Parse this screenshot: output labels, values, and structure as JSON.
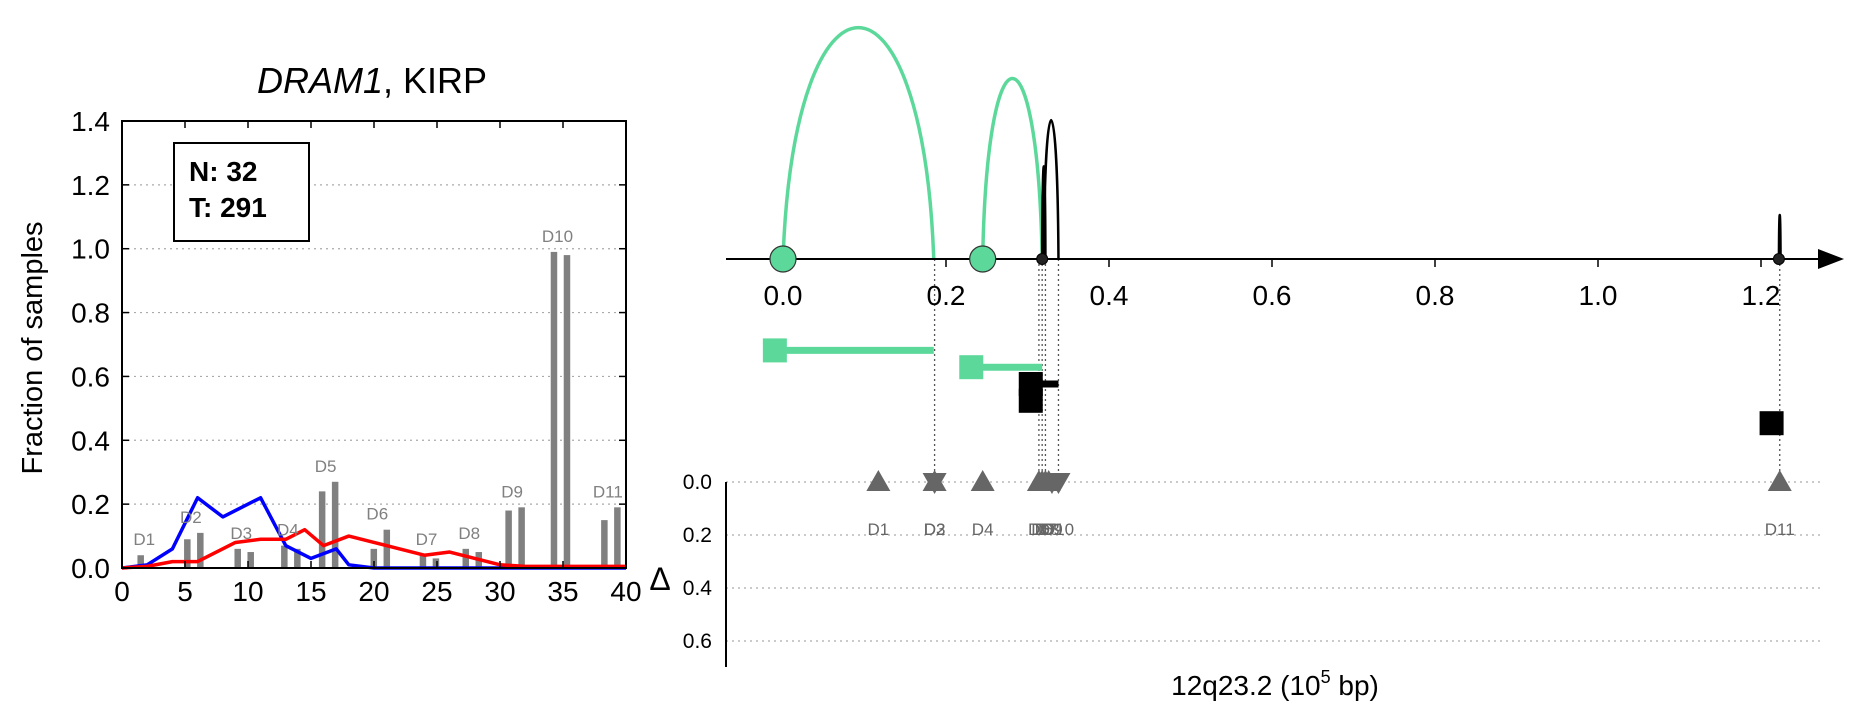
{
  "colors": {
    "normal_line": "#0000ff",
    "tumor_line": "#ff0000",
    "bar": "#808080",
    "highlight": "#5cd99a",
    "black": "#000000",
    "grid": "#aaaaaa",
    "marker": "#666666"
  },
  "chart_data": [
    {
      "type": "bar",
      "title_gene": "DRAM1",
      "title_rest": ", KIRP",
      "xlabel": "",
      "ylabel": "Fraction of samples",
      "xlim": [
        0,
        40
      ],
      "ylim": [
        0,
        1.4
      ],
      "xticks": [
        "0",
        "5",
        "10",
        "15",
        "20",
        "25",
        "30",
        "35",
        "40"
      ],
      "yticks": [
        "0.0",
        "0.2",
        "0.4",
        "0.6",
        "0.8",
        "1.0",
        "1.2",
        "1.4"
      ],
      "grid": "horizontal dotted",
      "legend_box": {
        "n_label": "N: 32",
        "t_label": "T: 291",
        "position": "top-left"
      },
      "bars": [
        {
          "label": "D1",
          "values": [
            0.04,
            0.0
          ],
          "x": 2
        },
        {
          "label": "D2",
          "values": [
            0.09,
            0.11
          ],
          "x": 5.7
        },
        {
          "label": "D3",
          "values": [
            0.06,
            0.05
          ],
          "x": 9.7
        },
        {
          "label": "D4",
          "values": [
            0.07,
            0.06
          ],
          "x": 13.4
        },
        {
          "label": "D5",
          "values": [
            0.24,
            0.27
          ],
          "x": 16.4
        },
        {
          "label": "D6",
          "values": [
            0.06,
            0.12
          ],
          "x": 20.5
        },
        {
          "label": "D7",
          "values": [
            0.04,
            0.03
          ],
          "x": 24.4
        },
        {
          "label": "D8",
          "values": [
            0.06,
            0.05
          ],
          "x": 27.8
        },
        {
          "label": "D9",
          "values": [
            0.18,
            0.19
          ],
          "x": 31.2
        },
        {
          "label": "D10",
          "values": [
            0.99,
            0.98
          ],
          "x": 34.8
        },
        {
          "label": "D11",
          "values": [
            0.15,
            0.19
          ],
          "x": 38.8
        }
      ],
      "series": [
        {
          "name": "N",
          "x": [
            0,
            2,
            4,
            6,
            8,
            11,
            13,
            15,
            17,
            18,
            20,
            30,
            40
          ],
          "y": [
            0,
            0.01,
            0.06,
            0.22,
            0.16,
            0.22,
            0.07,
            0.03,
            0.06,
            0.01,
            0,
            0,
            0
          ]
        },
        {
          "name": "T",
          "x": [
            0,
            2,
            4,
            6,
            7,
            9,
            11,
            13,
            14.5,
            16,
            18,
            20,
            22,
            24,
            26,
            28,
            30,
            32,
            40
          ],
          "y": [
            0,
            0.005,
            0.02,
            0.02,
            0.04,
            0.08,
            0.09,
            0.09,
            0.12,
            0.07,
            0.1,
            0.08,
            0.06,
            0.04,
            0.05,
            0.03,
            0.01,
            0.005,
            0.005
          ]
        }
      ]
    },
    {
      "type": "scatter",
      "title": "",
      "xlabel_prefix": "12q23.2 (10",
      "xlabel_exp": "5",
      "xlabel_suffix": " bp)",
      "ylabel": "Δ",
      "xlim": [
        -0.07,
        1.3
      ],
      "xticks": [
        "0.0",
        "0.2",
        "0.4",
        "0.6",
        "0.8",
        "1.0",
        "1.2"
      ],
      "delta_ylim": [
        0.0,
        0.7
      ],
      "delta_yticks": [
        "0.0",
        "0.2",
        "0.4",
        "0.6"
      ],
      "arcs": [
        {
          "x1": 0.0,
          "x2": 0.185,
          "peak": 1.0,
          "color": "highlight"
        },
        {
          "x1": 0.245,
          "x2": 0.318,
          "peak": 0.78,
          "color": "highlight"
        },
        {
          "x1": 0.32,
          "x2": 0.338,
          "peak": 0.6,
          "color": "black"
        },
        {
          "x1": 0.318,
          "x2": 0.322,
          "peak": 0.4,
          "color": "black"
        },
        {
          "x1": 1.222,
          "x2": 1.224,
          "peak": 0.19,
          "color": "black"
        }
      ],
      "nodes": [
        {
          "x": 0.0,
          "kind": "large",
          "color": "highlight"
        },
        {
          "x": 0.245,
          "kind": "large",
          "color": "highlight"
        },
        {
          "x": 0.318,
          "kind": "small",
          "color": "black"
        },
        {
          "x": 1.222,
          "kind": "small",
          "color": "black"
        }
      ],
      "segments": [
        {
          "box_x": -0.01,
          "end_x": 0.185,
          "row": 0.36,
          "color": "highlight"
        },
        {
          "box_x": 0.231,
          "end_x": 0.318,
          "row": 0.48,
          "color": "highlight"
        },
        {
          "box_x": 0.304,
          "end_x": 0.338,
          "row": 0.6,
          "color": "black"
        },
        {
          "box_x": 0.304,
          "end_x": 0.318,
          "row": 0.72,
          "color": "black"
        },
        {
          "box_x": 1.213,
          "end_x": 1.222,
          "row": 0.88,
          "color": "black"
        }
      ],
      "markers": [
        {
          "label": "D1",
          "x": 0.117,
          "delta": 0.0,
          "dir": "up"
        },
        {
          "label": "D2",
          "x": 0.186,
          "delta": 0.0,
          "dir": "up"
        },
        {
          "label": "D3",
          "x": 0.186,
          "delta": 0.0,
          "dir": "down"
        },
        {
          "label": "D4",
          "x": 0.245,
          "delta": 0.0,
          "dir": "up"
        },
        {
          "label": "D5",
          "x": 0.314,
          "delta": 0.0,
          "dir": "up"
        },
        {
          "label": "D6",
          "x": 0.318,
          "delta": 0.0,
          "dir": "up"
        },
        {
          "label": "D7",
          "x": 0.322,
          "delta": 0.0,
          "dir": "up"
        },
        {
          "label": "D8",
          "x": 0.326,
          "delta": 0.0,
          "dir": "up"
        },
        {
          "label": "D9",
          "x": 0.33,
          "delta": 0.0,
          "dir": "down"
        },
        {
          "label": "D10",
          "x": 0.338,
          "delta": 0.0,
          "dir": "down"
        },
        {
          "label": "D11",
          "x": 1.223,
          "delta": 0.0,
          "dir": "up"
        }
      ],
      "vlines": [
        0.186,
        0.314,
        0.318,
        0.322,
        0.338,
        1.223
      ]
    }
  ]
}
